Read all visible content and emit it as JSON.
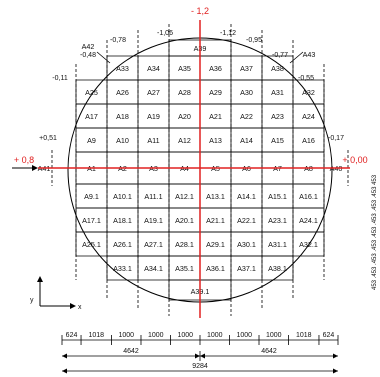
{
  "cells": {
    "row1": [
      "A39"
    ],
    "row2": [
      "A33",
      "A34",
      "A35",
      "A36",
      "A37",
      "A38"
    ],
    "row3": [
      "A25",
      "A26",
      "A27",
      "A28",
      "A29",
      "A30",
      "A31",
      "A32"
    ],
    "row4": [
      "A17",
      "A18",
      "A19",
      "A20",
      "A21",
      "A22",
      "A23",
      "A24"
    ],
    "row5": [
      "A9",
      "A10",
      "A11",
      "A12",
      "A13",
      "A14",
      "A15",
      "A16"
    ],
    "row6": [
      "A41",
      "A1",
      "A2",
      "A3",
      "A4",
      "A5",
      "A6",
      "A7",
      "A8",
      "A40"
    ],
    "row7": [
      "A9.1",
      "A10.1",
      "A11.1",
      "A12.1",
      "A13.1",
      "A14.1",
      "A15.1",
      "A16.1"
    ],
    "row8": [
      "A17.1",
      "A18.1",
      "A19.1",
      "A20.1",
      "A21.1",
      "A22.1",
      "A23.1",
      "A24.1"
    ],
    "row9": [
      "A25.1",
      "A26.1",
      "A27.1",
      "A28.1",
      "A29.1",
      "A30.1",
      "A31.1",
      "A32.1"
    ],
    "row10": [
      "A33.1",
      "A34.1",
      "A35.1",
      "A36.1",
      "A37.1",
      "A38.1"
    ],
    "row11": [
      "A39.1"
    ],
    "corner_left": "A42",
    "corner_right": "A43"
  },
  "offsets": {
    "top": [
      "-1,06",
      "-1,12"
    ],
    "top_red": "- 1,2",
    "upper_left": [
      "-0,78",
      "-0,48",
      "-0,11"
    ],
    "upper_right": [
      "-0,95",
      "-0,77",
      "-0,55"
    ],
    "left": "+0,51",
    "left_red": "+ 0,8",
    "right": "-0,17",
    "right_red": "+ 0,00"
  },
  "axes": {
    "y": "y",
    "x": "x"
  },
  "dimensions": {
    "row1": [
      "624",
      "1018",
      "1000",
      "1000",
      "1000",
      "1000",
      "1000",
      "1000",
      "1018",
      "624"
    ],
    "row2": [
      "4642",
      "4642"
    ],
    "row3": "9284"
  },
  "side_text": "453   .453 .453 .453 .453 .453 .453 .453   453",
  "colors": {
    "accent": "#e02020",
    "line": "#000000"
  }
}
